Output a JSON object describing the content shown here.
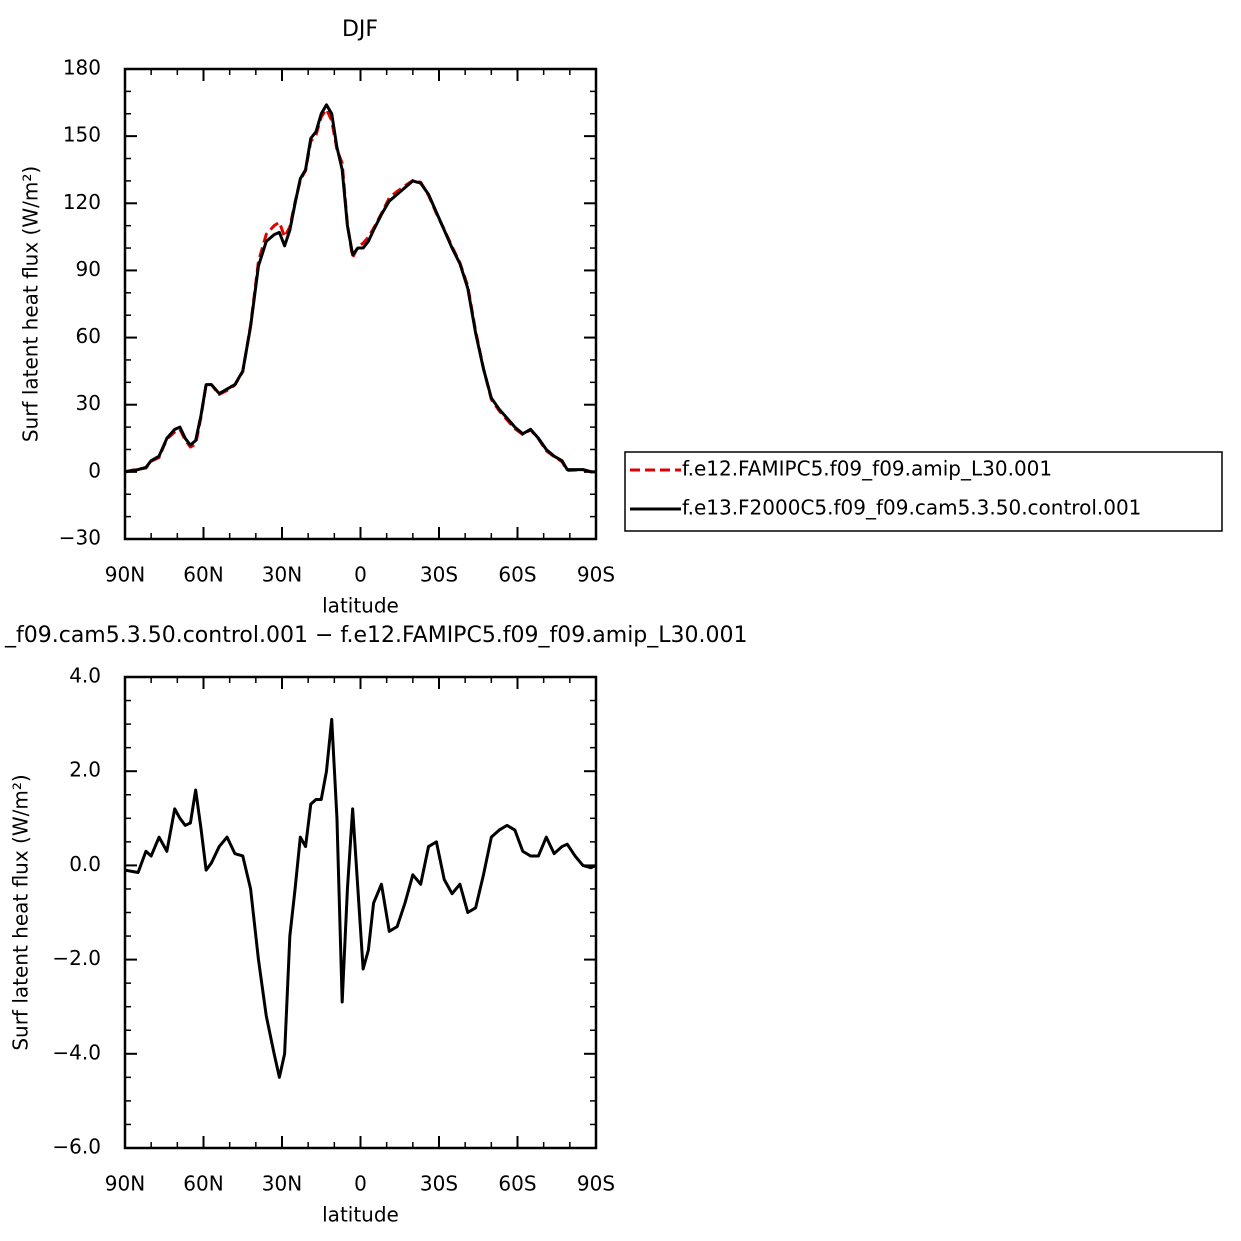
{
  "chart_data": [
    {
      "type": "line",
      "title": "DJF",
      "xlabel": "latitude",
      "ylabel": "Surf latent heat flux (W/m²)",
      "x": [
        90,
        85,
        82,
        80,
        77,
        74,
        71,
        69,
        67,
        65,
        63,
        61,
        59,
        57,
        54,
        51,
        48,
        45,
        42,
        39,
        36,
        33,
        31,
        29,
        27,
        25,
        23,
        21,
        19,
        17,
        15,
        13,
        11,
        9,
        7,
        5,
        3,
        1,
        -1,
        -3,
        -5,
        -8,
        -11,
        -14,
        -17,
        -20,
        -23,
        -26,
        -29,
        -32,
        -35,
        -38,
        -41,
        -44,
        -47,
        -50,
        -53,
        -56,
        -59,
        -62,
        -65,
        -68,
        -71,
        -74,
        -77,
        -79,
        -82,
        -85,
        -88,
        -90
      ],
      "series": [
        {
          "name": "f.e12.FAMIPC5.f09_f09.amip_L30.001",
          "color": "#e00000",
          "linestyle": "dashed",
          "values": [
            0.1,
            1.2,
            1.7,
            4.8,
            6.4,
            14.7,
            17.8,
            19,
            14.2,
            11.1,
            12.4,
            24.2,
            39.1,
            39,
            34.6,
            36.4,
            38.8,
            44.8,
            65.5,
            94,
            106.2,
            110,
            111.5,
            105,
            109.5,
            120.5,
            130.4,
            134.6,
            147.7,
            150.6,
            158.6,
            162,
            156.9,
            144,
            137.9,
            110.5,
            95.8,
            100.5,
            102.2,
            104.8,
            108.8,
            115.4,
            122.4,
            125.3,
            127.8,
            130.2,
            129.4,
            123.6,
            115.5,
            108.3,
            100.6,
            93.4,
            83,
            62.9,
            46.2,
            32.4,
            27.3,
            23.2,
            19.3,
            16.7,
            18.8,
            14.8,
            9.4,
            6.8,
            4.6,
            0.6,
            0.8,
            1,
            0.1,
            0
          ]
        },
        {
          "name": "f.e13.F2000C5.f09_f09.cam5.3.50.control.001",
          "color": "#000000",
          "linestyle": "solid",
          "values": [
            0,
            1,
            2,
            5,
            7,
            15,
            19,
            20,
            15,
            12,
            14,
            25,
            39,
            39,
            35,
            37,
            39,
            45,
            65,
            92,
            103,
            106,
            107,
            101,
            108,
            120,
            131,
            135,
            149,
            152,
            160,
            164,
            160,
            145,
            135,
            110,
            97,
            100,
            100,
            103,
            108,
            115,
            121,
            124,
            127,
            130,
            129,
            124,
            116,
            108,
            100,
            93,
            82,
            62,
            46,
            33,
            28,
            24,
            20,
            17,
            19,
            15,
            10,
            7,
            5,
            1,
            1,
            1,
            0,
            0
          ]
        }
      ],
      "xlim": [
        90,
        -90
      ],
      "xticks": [
        {
          "value": 90,
          "label": "90N"
        },
        {
          "value": 60,
          "label": "60N"
        },
        {
          "value": 30,
          "label": "30N"
        },
        0,
        {
          "value": -30,
          "label": "30S"
        },
        {
          "value": -60,
          "label": "60S"
        },
        {
          "value": -90,
          "label": "90S"
        }
      ],
      "xminorticks": [
        80,
        70,
        50,
        40,
        20,
        10,
        -10,
        -20,
        -40,
        -50,
        -70,
        -80
      ],
      "ylim": [
        -30,
        180
      ],
      "yticks": [
        {
          "value": -30,
          "label": "−30"
        },
        0,
        30,
        60,
        90,
        120,
        150,
        180
      ],
      "yminorticks": [
        -20,
        -10,
        10,
        20,
        40,
        50,
        70,
        80,
        100,
        110,
        130,
        140,
        160,
        170
      ],
      "legend": "right"
    },
    {
      "type": "line",
      "title": "_f09.cam5.3.50.control.001 − f.e12.FAMIPC5.f09_f09.amip_L30.001",
      "xlabel": "latitude",
      "ylabel": "Surf latent heat flux (W/m²)",
      "x": [
        90,
        85,
        82,
        80,
        77,
        74,
        71,
        69,
        67,
        65,
        63,
        61,
        59,
        57,
        54,
        51,
        48,
        45,
        42,
        39,
        36,
        33,
        31,
        29,
        27,
        25,
        23,
        21,
        19,
        17,
        15,
        13,
        11,
        9,
        7,
        5,
        3,
        1,
        -1,
        -3,
        -5,
        -8,
        -11,
        -14,
        -17,
        -20,
        -23,
        -26,
        -29,
        -32,
        -35,
        -38,
        -41,
        -44,
        -47,
        -50,
        -53,
        -56,
        -59,
        -62,
        -65,
        -68,
        -71,
        -74,
        -77,
        -79,
        -82,
        -85,
        -88,
        -90
      ],
      "series": [
        {
          "color": "#000000",
          "linestyle": "solid",
          "values": [
            -0.1,
            -0.15,
            0.3,
            0.2,
            0.6,
            0.3,
            1.2,
            1.0,
            0.85,
            0.9,
            1.6,
            0.8,
            -0.1,
            0.05,
            0.4,
            0.6,
            0.25,
            0.2,
            -0.5,
            -2.0,
            -3.2,
            -4.0,
            -4.5,
            -4.0,
            -1.5,
            -0.5,
            0.6,
            0.4,
            1.3,
            1.4,
            1.4,
            2.0,
            3.1,
            1.0,
            -2.9,
            -0.5,
            1.2,
            -0.5,
            -2.2,
            -1.8,
            -0.8,
            -0.4,
            -1.4,
            -1.3,
            -0.8,
            -0.2,
            -0.4,
            0.4,
            0.5,
            -0.3,
            -0.6,
            -0.4,
            -1.0,
            -0.9,
            -0.2,
            0.6,
            0.75,
            0.85,
            0.75,
            0.3,
            0.2,
            0.2,
            0.6,
            0.25,
            0.4,
            0.45,
            0.2,
            0,
            -0.05,
            0
          ]
        }
      ],
      "xlim": [
        90,
        -90
      ],
      "xticks": [
        {
          "value": 90,
          "label": "90N"
        },
        {
          "value": 60,
          "label": "60N"
        },
        {
          "value": 30,
          "label": "30N"
        },
        0,
        {
          "value": -30,
          "label": "30S"
        },
        {
          "value": -60,
          "label": "60S"
        },
        {
          "value": -90,
          "label": "90S"
        }
      ],
      "xminorticks": [
        80,
        70,
        50,
        40,
        20,
        10,
        -10,
        -20,
        -40,
        -50,
        -70,
        -80
      ],
      "ylim": [
        -6,
        4
      ],
      "yticks": [
        {
          "value": -6,
          "label": "−6.0"
        },
        {
          "value": -4,
          "label": "−4.0"
        },
        {
          "value": -2,
          "label": "−2.0"
        },
        {
          "value": 0,
          "label": "0.0"
        },
        {
          "value": 2,
          "label": "2.0"
        },
        {
          "value": 4,
          "label": "4.0"
        }
      ],
      "yminorticks": [
        -5.5,
        -5,
        -4.5,
        -3.5,
        -3,
        -2.5,
        -1.5,
        -1,
        -0.5,
        0.5,
        1,
        1.5,
        2.5,
        3,
        3.5
      ]
    }
  ]
}
